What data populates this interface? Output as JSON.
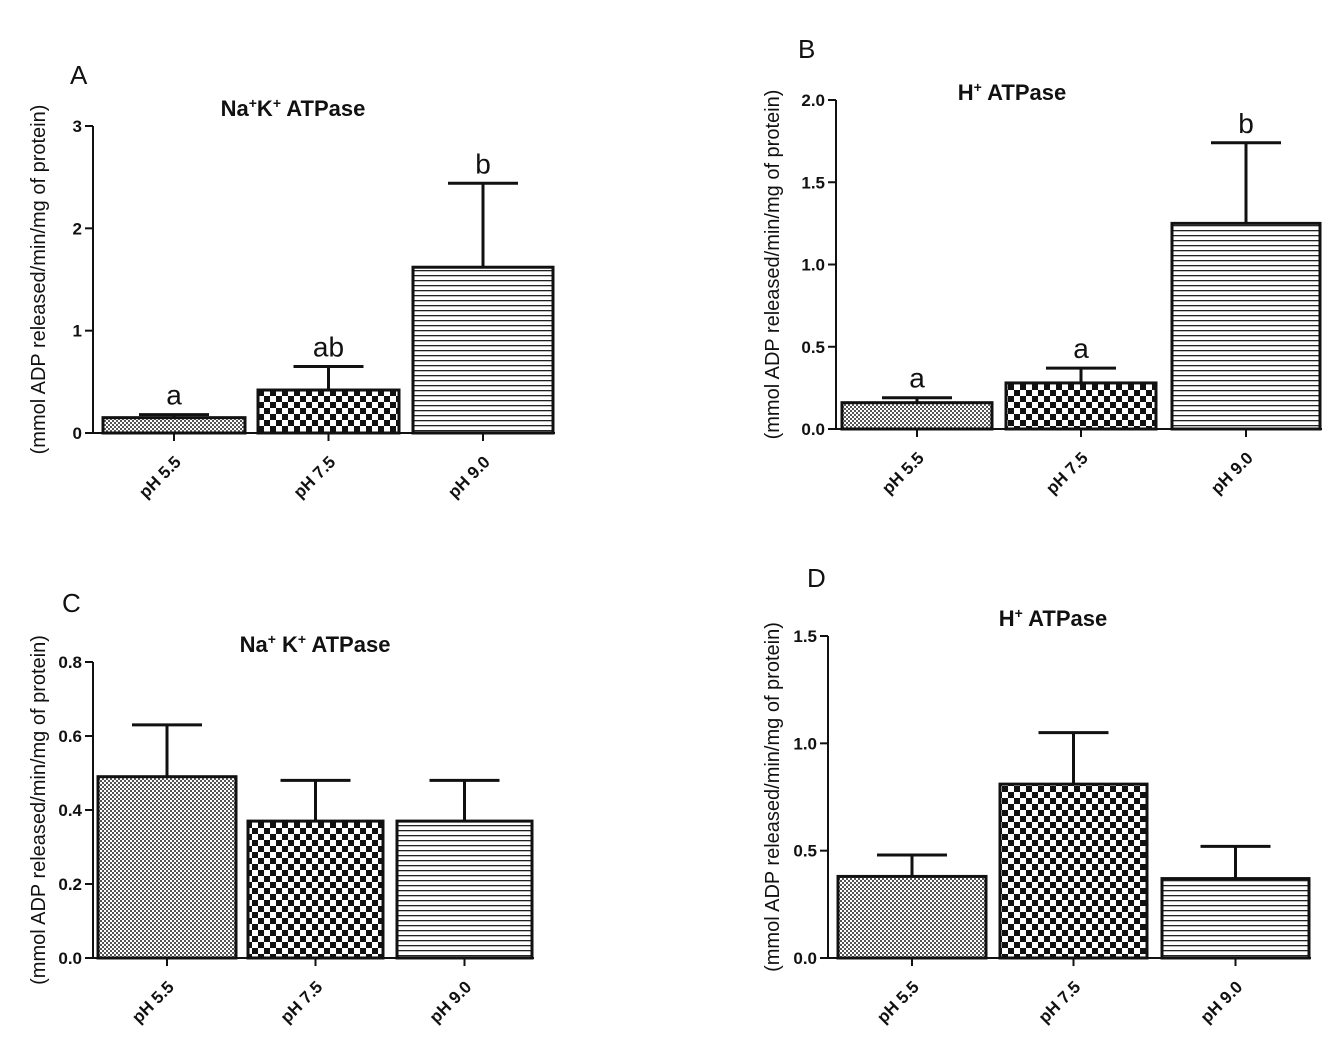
{
  "chart_data": [
    {
      "panel": "A",
      "type": "bar",
      "title": {
        "parts": [
          {
            "t": "Na"
          },
          {
            "t": "+",
            "sup": true
          },
          {
            "t": "K"
          },
          {
            "t": "+",
            "sup": true
          },
          {
            "t": " ATPase"
          }
        ]
      },
      "ylabel": "(mmol ADP released/min/mg of protein)",
      "ylim": [
        0,
        3
      ],
      "yticks": [
        "0",
        "1",
        "2",
        "3"
      ],
      "categories": [
        "pH 5.5",
        "pH 7.5",
        "pH 9.0"
      ],
      "values": [
        0.15,
        0.42,
        1.62
      ],
      "errors": [
        0.03,
        0.23,
        0.82
      ],
      "significance": [
        "a",
        "ab",
        "b"
      ],
      "patterns": [
        "fine",
        "checker",
        "hstripe"
      ]
    },
    {
      "panel": "B",
      "type": "bar",
      "title": {
        "parts": [
          {
            "t": "H"
          },
          {
            "t": "+",
            "sup": true
          },
          {
            "t": " ATPase"
          }
        ]
      },
      "ylabel": "(mmol ADP released/min/mg of protein)",
      "ylim": [
        0,
        2.0
      ],
      "yticks": [
        "0.0",
        "0.5",
        "1.0",
        "1.5",
        "2.0"
      ],
      "categories": [
        "pH 5.5",
        "pH 7.5",
        "pH 9.0"
      ],
      "values": [
        0.16,
        0.28,
        1.25
      ],
      "errors": [
        0.03,
        0.09,
        0.49
      ],
      "significance": [
        "a",
        "a",
        "b"
      ],
      "patterns": [
        "fine",
        "checker",
        "hstripe"
      ]
    },
    {
      "panel": "C",
      "type": "bar",
      "title": {
        "parts": [
          {
            "t": "Na"
          },
          {
            "t": "+",
            "sup": true
          },
          {
            "t": " K"
          },
          {
            "t": "+",
            "sup": true
          },
          {
            "t": " ATPase"
          }
        ]
      },
      "ylabel": "(mmol ADP released/min/mg of protein)",
      "ylim": [
        0,
        0.8
      ],
      "yticks": [
        "0.0",
        "0.2",
        "0.4",
        "0.6",
        "0.8"
      ],
      "categories": [
        "pH 5.5",
        "pH 7.5",
        "pH 9.0"
      ],
      "values": [
        0.49,
        0.37,
        0.37
      ],
      "errors": [
        0.14,
        0.11,
        0.11
      ],
      "significance": [],
      "patterns": [
        "fine",
        "checker",
        "hstripe"
      ]
    },
    {
      "panel": "D",
      "type": "bar",
      "title": {
        "parts": [
          {
            "t": "H"
          },
          {
            "t": "+",
            "sup": true
          },
          {
            "t": " ATPase"
          }
        ]
      },
      "ylabel": "(mmol ADP released/min/mg of protein)",
      "ylim": [
        0,
        1.5
      ],
      "yticks": [
        "0.0",
        "0.5",
        "1.0",
        "1.5"
      ],
      "categories": [
        "pH 5.5",
        "pH 7.5",
        "pH 9.0"
      ],
      "values": [
        0.38,
        0.81,
        0.37
      ],
      "errors": [
        0.1,
        0.24,
        0.15
      ],
      "significance": [],
      "patterns": [
        "fine",
        "checker",
        "hstripe"
      ]
    }
  ]
}
